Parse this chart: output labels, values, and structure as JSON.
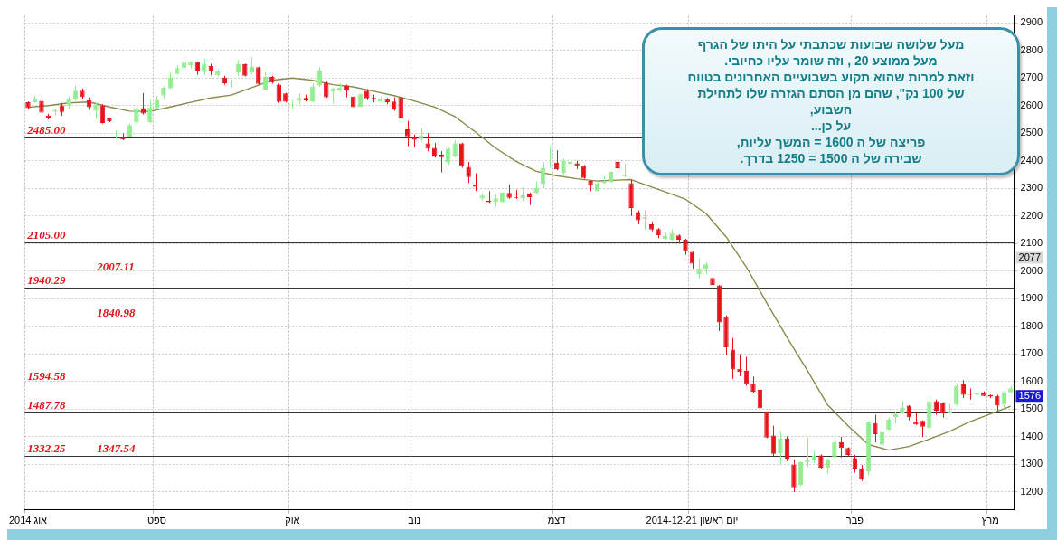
{
  "chart_data": {
    "type": "candlestick",
    "categories": [
      "אוג 2014",
      null,
      null,
      null,
      null,
      null,
      null,
      null,
      null,
      null,
      null,
      null,
      null,
      null,
      null,
      null,
      null,
      null,
      null,
      "ספט",
      null,
      null,
      null,
      null,
      null,
      null,
      null,
      null,
      null,
      null,
      null,
      null,
      null,
      null,
      null,
      null,
      null,
      null,
      null,
      "אוק",
      null,
      null,
      null,
      null,
      null,
      null,
      null,
      null,
      null,
      null,
      null,
      null,
      null,
      null,
      null,
      null,
      null,
      "נוב",
      null,
      null,
      null,
      null,
      null,
      null,
      null,
      null,
      null,
      null,
      null,
      null,
      null,
      null,
      null,
      null,
      null,
      null,
      null,
      null,
      "דצמ",
      null,
      null,
      null,
      null,
      null,
      null,
      null,
      null,
      null,
      null,
      null,
      null,
      null,
      null,
      null,
      null,
      null,
      null,
      null,
      "יום ראשון 2014-12-21",
      null,
      null,
      null,
      null,
      null,
      null,
      null,
      null,
      null,
      null,
      null,
      null,
      null,
      null,
      null,
      null,
      null,
      null,
      null,
      null,
      null,
      null,
      null,
      "פבר",
      null,
      null,
      null,
      null,
      null,
      null,
      null,
      null,
      null,
      null,
      null,
      null,
      null,
      null,
      null,
      null,
      null,
      null,
      null,
      "מרץ",
      null,
      null,
      null
    ],
    "ohlc": [
      [
        2612,
        2615,
        2588,
        2591
      ],
      [
        2612,
        2636,
        2610,
        2625
      ],
      [
        2617,
        2620,
        2572,
        2575
      ],
      [
        2564,
        2570,
        2550,
        2557
      ],
      [
        2578,
        2590,
        2565,
        2584
      ],
      [
        2601,
        2610,
        2562,
        2577
      ],
      [
        2601,
        2632,
        2590,
        2622
      ],
      [
        2622,
        2673,
        2618,
        2654
      ],
      [
        2654,
        2662,
        2625,
        2630
      ],
      [
        2619,
        2630,
        2585,
        2594
      ],
      [
        2581,
        2612,
        2552,
        2603
      ],
      [
        2601,
        2605,
        2535,
        2537
      ],
      [
        2553,
        2556,
        2540,
        2543
      ],
      [
        2490,
        2511,
        2479,
        2492
      ],
      [
        2485,
        2500,
        2475,
        2477
      ],
      [
        2488,
        2535,
        2485,
        2530
      ],
      [
        2539,
        2593,
        2537,
        2591
      ],
      [
        2591,
        2645,
        2568,
        2571
      ],
      [
        2540,
        2620,
        2535,
        2594
      ],
      [
        2591,
        2635,
        2585,
        2619
      ],
      [
        2636,
        2672,
        2625,
        2665
      ],
      [
        2663,
        2722,
        2660,
        2702
      ],
      [
        2715,
        2745,
        2712,
        2736
      ],
      [
        2736,
        2782,
        2725,
        2757
      ],
      [
        2747,
        2762,
        2735,
        2759
      ],
      [
        2759,
        2760,
        2712,
        2724
      ],
      [
        2721,
        2770,
        2712,
        2752
      ],
      [
        2744,
        2752,
        2710,
        2724
      ],
      [
        2710,
        2732,
        2705,
        2724
      ],
      [
        2702,
        2708,
        2676,
        2681
      ],
      [
        2683,
        2695,
        2665,
        2685
      ],
      [
        2720,
        2765,
        2706,
        2750
      ],
      [
        2750,
        2752,
        2706,
        2708
      ],
      [
        2720,
        2777,
        2713,
        2741
      ],
      [
        2739,
        2741,
        2676,
        2679
      ],
      [
        2658,
        2722,
        2655,
        2704
      ],
      [
        2704,
        2708,
        2680,
        2684
      ],
      [
        2676,
        2680,
        2610,
        2614
      ],
      [
        2644,
        2646,
        2612,
        2614
      ],
      [
        2603,
        2620,
        2592,
        2605
      ],
      [
        2619,
        2645,
        2605,
        2628
      ],
      [
        2628,
        2640,
        2615,
        2619
      ],
      [
        2615,
        2680,
        2612,
        2670
      ],
      [
        2673,
        2740,
        2668,
        2729
      ],
      [
        2683,
        2688,
        2628,
        2630
      ],
      [
        2651,
        2665,
        2607,
        2662
      ],
      [
        2654,
        2680,
        2650,
        2665
      ],
      [
        2673,
        2676,
        2630,
        2654
      ],
      [
        2633,
        2640,
        2590,
        2594
      ],
      [
        2596,
        2645,
        2594,
        2641
      ],
      [
        2654,
        2660,
        2620,
        2626
      ],
      [
        2628,
        2640,
        2612,
        2622
      ],
      [
        2615,
        2632,
        2612,
        2625
      ],
      [
        2625,
        2628,
        2605,
        2612
      ],
      [
        2615,
        2630,
        2582,
        2585
      ],
      [
        2630,
        2632,
        2540,
        2553
      ],
      [
        2514,
        2545,
        2453,
        2489
      ],
      [
        2484,
        2495,
        2450,
        2476
      ],
      [
        2479,
        2518,
        2470,
        2492
      ],
      [
        2463,
        2500,
        2435,
        2444
      ],
      [
        2447,
        2465,
        2412,
        2415
      ],
      [
        2422,
        2435,
        2358,
        2413
      ],
      [
        2394,
        2448,
        2385,
        2444
      ],
      [
        2415,
        2475,
        2412,
        2463
      ],
      [
        2463,
        2465,
        2375,
        2381
      ],
      [
        2378,
        2396,
        2320,
        2341
      ],
      [
        2314,
        2355,
        2290,
        2306
      ],
      [
        2263,
        2282,
        2255,
        2274
      ],
      [
        2256,
        2290,
        2247,
        2250
      ],
      [
        2250,
        2280,
        2232,
        2264
      ],
      [
        2250,
        2285,
        2248,
        2285
      ],
      [
        2284,
        2315,
        2262,
        2266
      ],
      [
        2269,
        2295,
        2262,
        2266
      ],
      [
        2264,
        2305,
        2255,
        2275
      ],
      [
        2282,
        2285,
        2240,
        2268
      ],
      [
        2284,
        2325,
        2280,
        2303
      ],
      [
        2316,
        2395,
        2300,
        2374
      ],
      [
        2392,
        2454,
        2375,
        2394
      ],
      [
        2394,
        2438,
        2366,
        2369
      ],
      [
        2357,
        2408,
        2350,
        2399
      ],
      [
        2389,
        2405,
        2375,
        2396
      ],
      [
        2391,
        2400,
        2370,
        2380
      ],
      [
        2381,
        2385,
        2335,
        2338
      ],
      [
        2327,
        2330,
        2290,
        2312
      ],
      [
        2290,
        2330,
        2288,
        2319
      ],
      [
        2321,
        2345,
        2315,
        2325
      ],
      [
        2323,
        2362,
        2320,
        2360
      ],
      [
        2396,
        2400,
        2370,
        2373
      ],
      [
        2344,
        2390,
        2340,
        2346
      ],
      [
        2319,
        2332,
        2200,
        2229
      ],
      [
        2214,
        2220,
        2170,
        2185
      ],
      [
        2190,
        2221,
        2150,
        2195
      ],
      [
        2170,
        2180,
        2145,
        2151
      ],
      [
        2153,
        2156,
        2120,
        2131
      ],
      [
        2117,
        2140,
        2115,
        2128
      ],
      [
        2114,
        2152,
        2112,
        2139
      ],
      [
        2130,
        2133,
        2100,
        2114
      ],
      [
        2114,
        2118,
        2060,
        2073
      ],
      [
        2070,
        2072,
        2010,
        2027
      ],
      [
        1990,
        2045,
        1975,
        2009
      ],
      [
        2009,
        2033,
        1990,
        2025
      ],
      [
        1976,
        2015,
        1940,
        1950
      ],
      [
        1949,
        1950,
        1783,
        1814
      ],
      [
        1833,
        1840,
        1698,
        1724
      ],
      [
        1716,
        1758,
        1610,
        1644
      ],
      [
        1646,
        1700,
        1620,
        1636
      ],
      [
        1639,
        1690,
        1585,
        1591
      ],
      [
        1594,
        1618,
        1560,
        1564
      ],
      [
        1570,
        1580,
        1490,
        1504
      ],
      [
        1490,
        1492,
        1395,
        1397
      ],
      [
        1405,
        1440,
        1330,
        1338
      ],
      [
        1341,
        1420,
        1300,
        1394
      ],
      [
        1394,
        1402,
        1312,
        1318
      ],
      [
        1299,
        1315,
        1200,
        1217
      ],
      [
        1225,
        1312,
        1222,
        1308
      ],
      [
        1307,
        1398,
        1290,
        1315
      ],
      [
        1315,
        1350,
        1305,
        1331
      ],
      [
        1333,
        1336,
        1285,
        1288
      ],
      [
        1288,
        1318,
        1265,
        1315
      ],
      [
        1326,
        1398,
        1324,
        1381
      ],
      [
        1381,
        1400,
        1325,
        1360
      ],
      [
        1360,
        1362,
        1330,
        1334
      ],
      [
        1323,
        1335,
        1270,
        1285
      ],
      [
        1286,
        1298,
        1240,
        1245
      ],
      [
        1275,
        1455,
        1260,
        1453
      ],
      [
        1450,
        1480,
        1380,
        1410
      ],
      [
        1371,
        1418,
        1368,
        1416
      ],
      [
        1426,
        1470,
        1424,
        1464
      ],
      [
        1471,
        1492,
        1448,
        1483
      ],
      [
        1485,
        1530,
        1483,
        1506
      ],
      [
        1513,
        1515,
        1460,
        1471
      ],
      [
        1455,
        1485,
        1443,
        1445
      ],
      [
        1458,
        1460,
        1400,
        1437
      ],
      [
        1432,
        1545,
        1425,
        1529
      ],
      [
        1529,
        1535,
        1480,
        1495
      ],
      [
        1524,
        1526,
        1470,
        1485
      ],
      [
        1485,
        1520,
        1483,
        1494
      ],
      [
        1517,
        1595,
        1510,
        1584
      ],
      [
        1594,
        1605,
        1540,
        1552
      ],
      [
        1554,
        1575,
        1535,
        1552
      ],
      [
        1552,
        1562,
        1545,
        1557
      ],
      [
        1561,
        1565,
        1548,
        1548
      ],
      [
        1551,
        1553,
        1540,
        1546
      ],
      [
        1548,
        1552,
        1495,
        1513
      ],
      [
        1517,
        1565,
        1502,
        1562
      ],
      [
        1561,
        1585,
        1558,
        1576
      ]
    ],
    "colors": [
      "#e8141c",
      "#90ee90",
      "#e8141c",
      "#e8141c",
      "#90ee90",
      "#e8141c",
      "#90ee90",
      "#90ee90",
      "#e8141c",
      "#e8141c",
      "#90ee90",
      "#e8141c",
      "#e8141c",
      "#90ee90",
      "#e8141c",
      "#90ee90",
      "#90ee90",
      "#e8141c",
      "#90ee90",
      "#90ee90",
      "#90ee90",
      "#90ee90",
      "#90ee90",
      "#90ee90",
      "#90ee90",
      "#e8141c",
      "#90ee90",
      "#e8141c",
      "#90ee90",
      "#e8141c",
      "#90ee90",
      "#90ee90",
      "#e8141c",
      "#90ee90",
      "#e8141c",
      "#90ee90",
      "#e8141c",
      "#e8141c",
      "#e8141c",
      "#90ee90",
      "#90ee90",
      "#e8141c",
      "#90ee90",
      "#90ee90",
      "#e8141c",
      "#90ee90",
      "#90ee90",
      "#e8141c",
      "#e8141c",
      "#90ee90",
      "#e8141c",
      "#e8141c",
      "#90ee90",
      "#e8141c",
      "#e8141c",
      "#e8141c",
      "#e8141c",
      "#e8141c",
      "#90ee90",
      "#e8141c",
      "#e8141c",
      "#e8141c",
      "#90ee90",
      "#90ee90",
      "#e8141c",
      "#e8141c",
      "#e8141c",
      "#90ee90",
      "#e8141c",
      "#90ee90",
      "#90ee90",
      "#e8141c",
      "#e8141c",
      "#90ee90",
      "#e8141c",
      "#90ee90",
      "#90ee90",
      "#90ee90",
      "#e8141c",
      "#90ee90",
      "#90ee90",
      "#e8141c",
      "#e8141c",
      "#e8141c",
      "#90ee90",
      "#90ee90",
      "#90ee90",
      "#e8141c",
      "#90ee90",
      "#e8141c",
      "#e8141c",
      "#90ee90",
      "#e8141c",
      "#e8141c",
      "#90ee90",
      "#90ee90",
      "#e8141c",
      "#e8141c",
      "#e8141c",
      "#90ee90",
      "#90ee90",
      "#e8141c",
      "#e8141c",
      "#e8141c",
      "#e8141c",
      "#e8141c",
      "#e8141c",
      "#e8141c",
      "#e8141c",
      "#e8141c",
      "#e8141c",
      "#90ee90",
      "#e8141c",
      "#e8141c",
      "#90ee90",
      "#90ee90",
      "#90ee90",
      "#e8141c",
      "#90ee90",
      "#90ee90",
      "#e8141c",
      "#e8141c",
      "#e8141c",
      "#e8141c",
      "#90ee90",
      "#e8141c",
      "#90ee90",
      "#90ee90",
      "#90ee90",
      "#90ee90",
      "#e8141c",
      "#e8141c",
      "#e8141c",
      "#90ee90",
      "#e8141c",
      "#e8141c",
      "#90ee90",
      "#90ee90",
      "#e8141c",
      "#e8141c",
      "#90ee90",
      "#e8141c",
      "#e8141c",
      "#e8141c",
      "#90ee90",
      "#90ee90"
    ],
    "series": [
      {
        "type": "line",
        "color": "#8a8a4a",
        "values": [
          2594,
          null,
          null,
          2600,
          null,
          null,
          2610,
          null,
          null,
          2613,
          null,
          null,
          2595,
          null,
          null,
          2580,
          null,
          null,
          2579,
          null,
          null,
          2595,
          null,
          null,
          2612,
          null,
          null,
          2628,
          null,
          null,
          2638,
          null,
          null,
          2665,
          null,
          null,
          2692,
          null,
          null,
          2700,
          null,
          null,
          2692,
          null,
          null,
          2676,
          null,
          null,
          2668,
          null,
          null,
          2652,
          null,
          null,
          2636,
          null,
          null,
          2617,
          null,
          null,
          2595,
          null,
          null,
          2560,
          null,
          null,
          2505,
          null,
          null,
          2446,
          null,
          null,
          2398,
          null,
          null,
          2362,
          null,
          null,
          2346,
          null,
          null,
          2335,
          null,
          null,
          2327,
          null,
          null,
          2330,
          null,
          2332,
          null,
          null,
          null,
          null,
          null,
          null,
          null,
          2261,
          null,
          null,
          2210,
          null,
          null,
          2125,
          null,
          null,
          2015,
          null,
          null,
          1885,
          null,
          null,
          1760,
          null,
          null,
          1640,
          null,
          null,
          1515,
          null,
          null,
          1440,
          null,
          null,
          1372,
          null,
          null,
          1352,
          null,
          null,
          1365,
          null,
          null,
          1392,
          null,
          null,
          1420,
          null,
          null,
          1455,
          null,
          null,
          1483,
          null,
          null,
          1511
        ]
      }
    ],
    "ylim": [
      1135,
      2925
    ],
    "yticks": [
      1200,
      1300,
      1400,
      1500,
      1600,
      1700,
      1800,
      1900,
      2000,
      2100,
      2200,
      2300,
      2400,
      2500,
      2600,
      2700,
      2800,
      2900
    ],
    "grid": true,
    "ref_lines": [
      {
        "axis": "y",
        "value": 2485,
        "label": "2485.00",
        "color": "#333333"
      },
      {
        "axis": "y",
        "value": 2105,
        "label": "2105.00",
        "color": "#333333"
      },
      {
        "axis": "y",
        "value": 1940.29,
        "label": "1940.29",
        "color": "#333333"
      },
      {
        "axis": "y",
        "value": 1594.58,
        "label": "1594.58",
        "color": "#333333"
      },
      {
        "axis": "y",
        "value": 1487.78,
        "label": "1487.78",
        "color": "#333333"
      },
      {
        "axis": "y",
        "value": 1332.25,
        "label": "1332.25",
        "color": "#333333"
      }
    ],
    "annotations": [
      "2007.11",
      "1840.98",
      "1347.54",
      "2077",
      "1576",
      "מעל שלושה שבועות שכתבתי על היתו של הגרף\nמעל ממוצע 20 , וזה שומר עליו כחיובי.\nוזאת למרות שהוא תקוע בשבועיים האחרונים בטווח\nשל 100 נק\", שהם מן הסתם הגזרה שלו לתחילת\nהשבוע,\nעל כן...\nפריצה של ה 1600 = המשך עליות,\nשבירה של ה 1500 = 1250 בדרך."
    ],
    "legend": false
  }
}
